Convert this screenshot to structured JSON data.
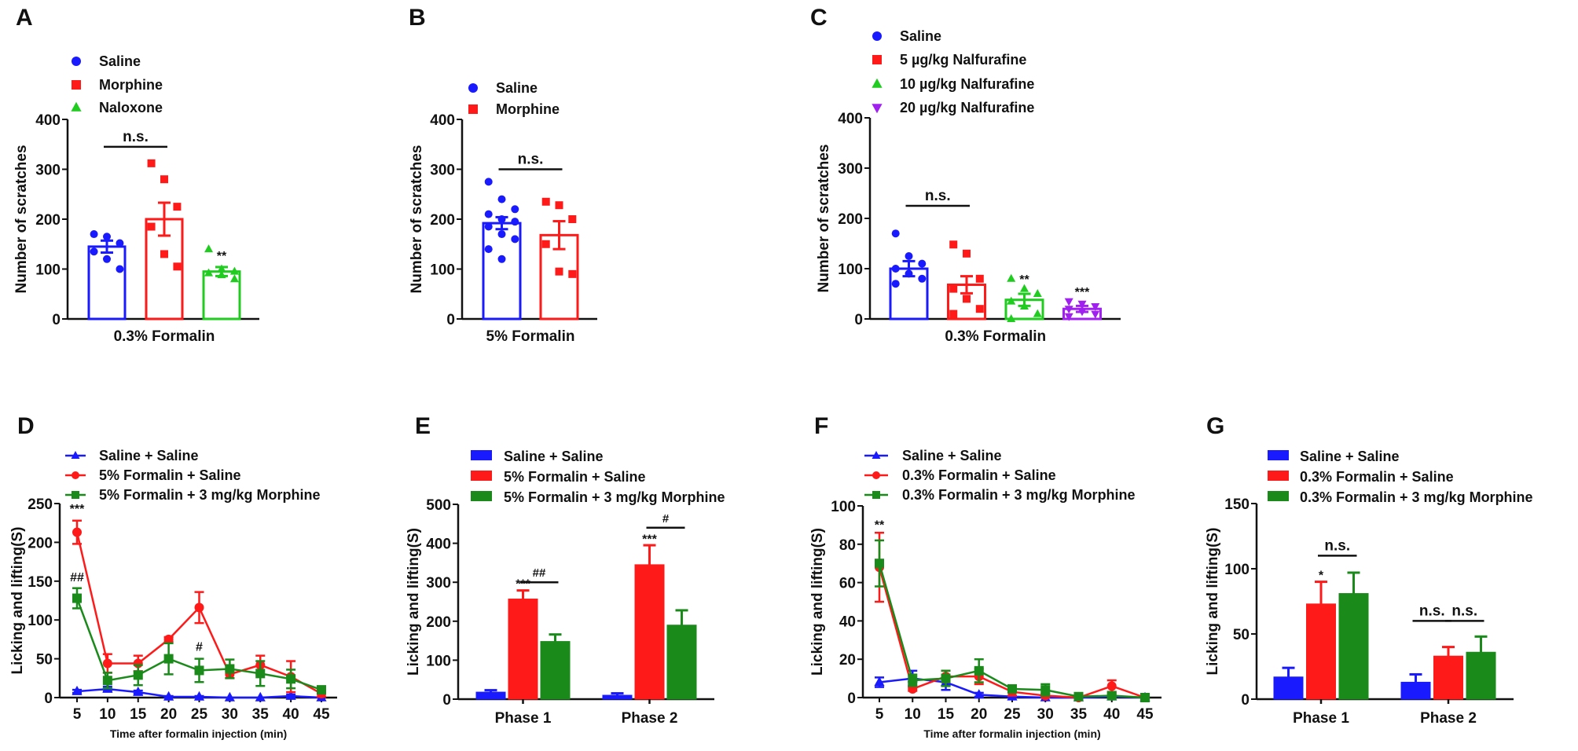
{
  "chart_data": [
    {
      "panel": "A",
      "type": "bar",
      "style": "hollow-with-points",
      "ylabel": "Number of scratches",
      "ylim": [
        0,
        400
      ],
      "yticks": [
        0,
        100,
        200,
        300,
        400
      ],
      "groups": [
        "0.3% Formalin"
      ],
      "series": [
        {
          "name": "Saline",
          "color": "#1a1aff",
          "marker": "circle",
          "values": [
            145
          ],
          "errors": [
            12
          ],
          "points": [
            [
              170,
              165,
              152,
              135,
              120,
              100
            ]
          ]
        },
        {
          "name": "Morphine",
          "color": "#ff1a1a",
          "marker": "square",
          "values": [
            200
          ],
          "errors": [
            33
          ],
          "points": [
            [
              312,
              280,
              225,
              185,
              130,
              105
            ]
          ]
        },
        {
          "name": "Naloxone",
          "color": "#1fcc1f",
          "marker": "triangle",
          "values": [
            95
          ],
          "errors": [
            9
          ],
          "points": [
            [
              140,
              100,
              95,
              92,
              88,
              80
            ]
          ]
        }
      ],
      "annotations": [
        {
          "text": "n.s.",
          "group": 0,
          "from": 0,
          "to": 1,
          "y": 345
        },
        {
          "text": "**",
          "group": 0,
          "series": 2,
          "y": 118
        }
      ]
    },
    {
      "panel": "B",
      "type": "bar",
      "style": "hollow-with-points",
      "ylabel": "Number of scratches",
      "ylim": [
        0,
        400
      ],
      "yticks": [
        0,
        100,
        200,
        300,
        400
      ],
      "groups": [
        "5% Formalin"
      ],
      "series": [
        {
          "name": "Saline",
          "color": "#1a1aff",
          "marker": "circle",
          "values": [
            192
          ],
          "errors": [
            12
          ],
          "points": [
            [
              275,
              240,
              220,
              210,
              200,
              195,
              185,
              170,
              160,
              140,
              120
            ]
          ]
        },
        {
          "name": "Morphine",
          "color": "#ff1a1a",
          "marker": "square",
          "values": [
            168
          ],
          "errors": [
            28
          ],
          "points": [
            [
              235,
              228,
              200,
              150,
              95,
              90
            ]
          ]
        }
      ],
      "annotations": [
        {
          "text": "n.s.",
          "group": 0,
          "from": 0,
          "to": 1,
          "y": 300
        }
      ]
    },
    {
      "panel": "C",
      "type": "bar",
      "style": "hollow-with-points",
      "ylabel": "Number of scratches",
      "ylim": [
        0,
        400
      ],
      "yticks": [
        0,
        100,
        200,
        300,
        400
      ],
      "groups": [
        "0.3% Formalin"
      ],
      "series": [
        {
          "name": "Saline",
          "color": "#1a1aff",
          "marker": "circle",
          "values": [
            100
          ],
          "errors": [
            15
          ],
          "points": [
            [
              170,
              125,
              110,
              100,
              90,
              80,
              70
            ]
          ]
        },
        {
          "name": "5 µg/kg Nalfurafine",
          "color": "#ff1a1a",
          "marker": "square",
          "values": [
            68
          ],
          "errors": [
            17
          ],
          "points": [
            [
              148,
              130,
              80,
              60,
              40,
              20,
              10
            ]
          ]
        },
        {
          "name": "10 µg/kg Nalfurafine",
          "color": "#1fcc1f",
          "marker": "triangle",
          "values": [
            38
          ],
          "errors": [
            12
          ],
          "points": [
            [
              80,
              60,
              50,
              35,
              25,
              10,
              0
            ]
          ]
        },
        {
          "name": "20 µg/kg Nalfurafine",
          "color": "#a020f0",
          "marker": "triangle-down",
          "values": [
            20
          ],
          "errors": [
            6
          ],
          "points": [
            [
              35,
              30,
              25,
              20,
              15,
              10,
              5
            ]
          ]
        }
      ],
      "annotations": [
        {
          "text": "n.s.",
          "group": 0,
          "from": 0,
          "to": 1,
          "y": 225
        },
        {
          "text": "**",
          "group": 0,
          "series": 2,
          "y": 70
        },
        {
          "text": "***",
          "group": 0,
          "series": 3,
          "y": 45
        }
      ]
    },
    {
      "panel": "D",
      "type": "line",
      "ylabel": "Licking and lifting(S)",
      "xlabel": "Time after formalin injection (min)",
      "ylim": [
        0,
        250
      ],
      "yticks": [
        0,
        50,
        100,
        150,
        200,
        250
      ],
      "x": [
        5,
        10,
        15,
        20,
        25,
        30,
        35,
        40,
        45
      ],
      "series": [
        {
          "name": "Saline + Saline",
          "color": "#1a1aff",
          "marker": "triangle",
          "values": [
            8,
            11,
            7,
            1,
            1,
            0,
            0,
            2,
            0
          ],
          "errors": [
            2,
            3,
            2,
            1,
            1,
            0,
            0,
            2,
            0
          ]
        },
        {
          "name": "5% Formalin + Saline",
          "color": "#ff1a1a",
          "marker": "circle",
          "values": [
            213,
            44,
            44,
            75,
            116,
            30,
            42,
            27,
            5
          ],
          "errors": [
            15,
            12,
            10,
            3,
            20,
            5,
            12,
            20,
            4
          ]
        },
        {
          "name": "5% Formalin + 3 mg/kg Morphine",
          "color": "#1a8a1a",
          "marker": "square",
          "values": [
            128,
            22,
            29,
            50,
            35,
            37,
            31,
            24,
            10
          ],
          "errors": [
            13,
            10,
            13,
            20,
            15,
            12,
            16,
            12,
            3
          ]
        }
      ],
      "annotations": [
        {
          "text": "***",
          "x": 5,
          "y": 238
        },
        {
          "text": "##",
          "x": 5,
          "y": 150
        },
        {
          "text": "#",
          "x": 25,
          "y": 60
        }
      ]
    },
    {
      "panel": "E",
      "type": "bar",
      "style": "filled",
      "ylabel": "Licking and lifting(S)",
      "ylim": [
        0,
        500
      ],
      "yticks": [
        0,
        100,
        200,
        300,
        400,
        500
      ],
      "groups": [
        "Phase 1",
        "Phase 2"
      ],
      "series": [
        {
          "name": "Saline + Saline",
          "color": "#1a1aff",
          "values": [
            18,
            10
          ],
          "errors": [
            5,
            5
          ]
        },
        {
          "name": "5% Formalin + Saline",
          "color": "#ff1a1a",
          "values": [
            257,
            345
          ],
          "errors": [
            22,
            50
          ]
        },
        {
          "name": "5% Formalin + 3 mg/kg Morphine",
          "color": "#1a8a1a",
          "values": [
            148,
            190
          ],
          "errors": [
            18,
            38
          ]
        }
      ],
      "annotations": [
        {
          "text": "***",
          "group": 0,
          "series": 1,
          "y": 285
        },
        {
          "text": "##",
          "group": 0,
          "from": 1,
          "to": 2,
          "y": 300
        },
        {
          "text": "***",
          "group": 1,
          "series": 1,
          "y": 400
        },
        {
          "text": "#",
          "group": 1,
          "from": 1,
          "to": 2,
          "y": 440
        }
      ]
    },
    {
      "panel": "F",
      "type": "line",
      "ylabel": "Licking and lifting(S)",
      "xlabel": "Time after formalin injection (min)",
      "ylim": [
        0,
        100
      ],
      "yticks": [
        0,
        20,
        40,
        60,
        80,
        100
      ],
      "x": [
        5,
        10,
        15,
        20,
        25,
        30,
        35,
        40,
        45
      ],
      "series": [
        {
          "name": "Saline + Saline",
          "color": "#1a1aff",
          "marker": "triangle",
          "values": [
            8,
            10,
            8,
            1.5,
            0.5,
            0,
            0,
            0.5,
            0
          ],
          "errors": [
            2.5,
            4,
            4,
            1,
            0.5,
            0,
            0,
            0.5,
            0
          ]
        },
        {
          "name": "0.3% Formalin + Saline",
          "color": "#ff1a1a",
          "marker": "circle",
          "values": [
            68,
            4.5,
            11,
            11,
            3,
            1,
            0,
            6,
            0
          ],
          "errors": [
            18,
            1,
            3,
            4,
            2,
            1,
            0,
            3,
            0
          ]
        },
        {
          "name": "0.3% Formalin + 3 mg/kg Morphine",
          "color": "#1a8a1a",
          "marker": "square",
          "values": [
            70,
            9,
            10,
            14,
            4.5,
            4,
            0.5,
            1,
            0
          ],
          "errors": [
            12,
            3,
            4,
            6,
            1.5,
            3,
            0.5,
            1,
            0
          ]
        }
      ],
      "annotations": [
        {
          "text": "**",
          "x": 5,
          "y": 88
        }
      ]
    },
    {
      "panel": "G",
      "type": "bar",
      "style": "filled",
      "ylabel": "Licking and lifting(S)",
      "ylim": [
        0,
        150
      ],
      "yticks": [
        0,
        50,
        100,
        150
      ],
      "groups": [
        "Phase 1",
        "Phase 2"
      ],
      "series": [
        {
          "name": "Saline + Saline",
          "color": "#1a1aff",
          "values": [
            17,
            13
          ],
          "errors": [
            7,
            6
          ]
        },
        {
          "name": "0.3% Formalin + Saline",
          "color": "#ff1a1a",
          "values": [
            73,
            33
          ],
          "errors": [
            17,
            7
          ]
        },
        {
          "name": "0.3% Formalin + 3 mg/kg Morphine",
          "color": "#1a8a1a",
          "values": [
            81,
            36
          ],
          "errors": [
            16,
            12
          ]
        }
      ],
      "annotations": [
        {
          "text": "*",
          "group": 0,
          "series": 1,
          "y": 92
        },
        {
          "text": "n.s.",
          "group": 0,
          "from": 1,
          "to": 2,
          "y": 110
        },
        {
          "text": "n.s.",
          "group": 1,
          "from": 0,
          "to": 1,
          "y": 60
        },
        {
          "text": "n.s.",
          "group": 1,
          "from": 1,
          "to": 2,
          "y": 60
        }
      ]
    }
  ]
}
